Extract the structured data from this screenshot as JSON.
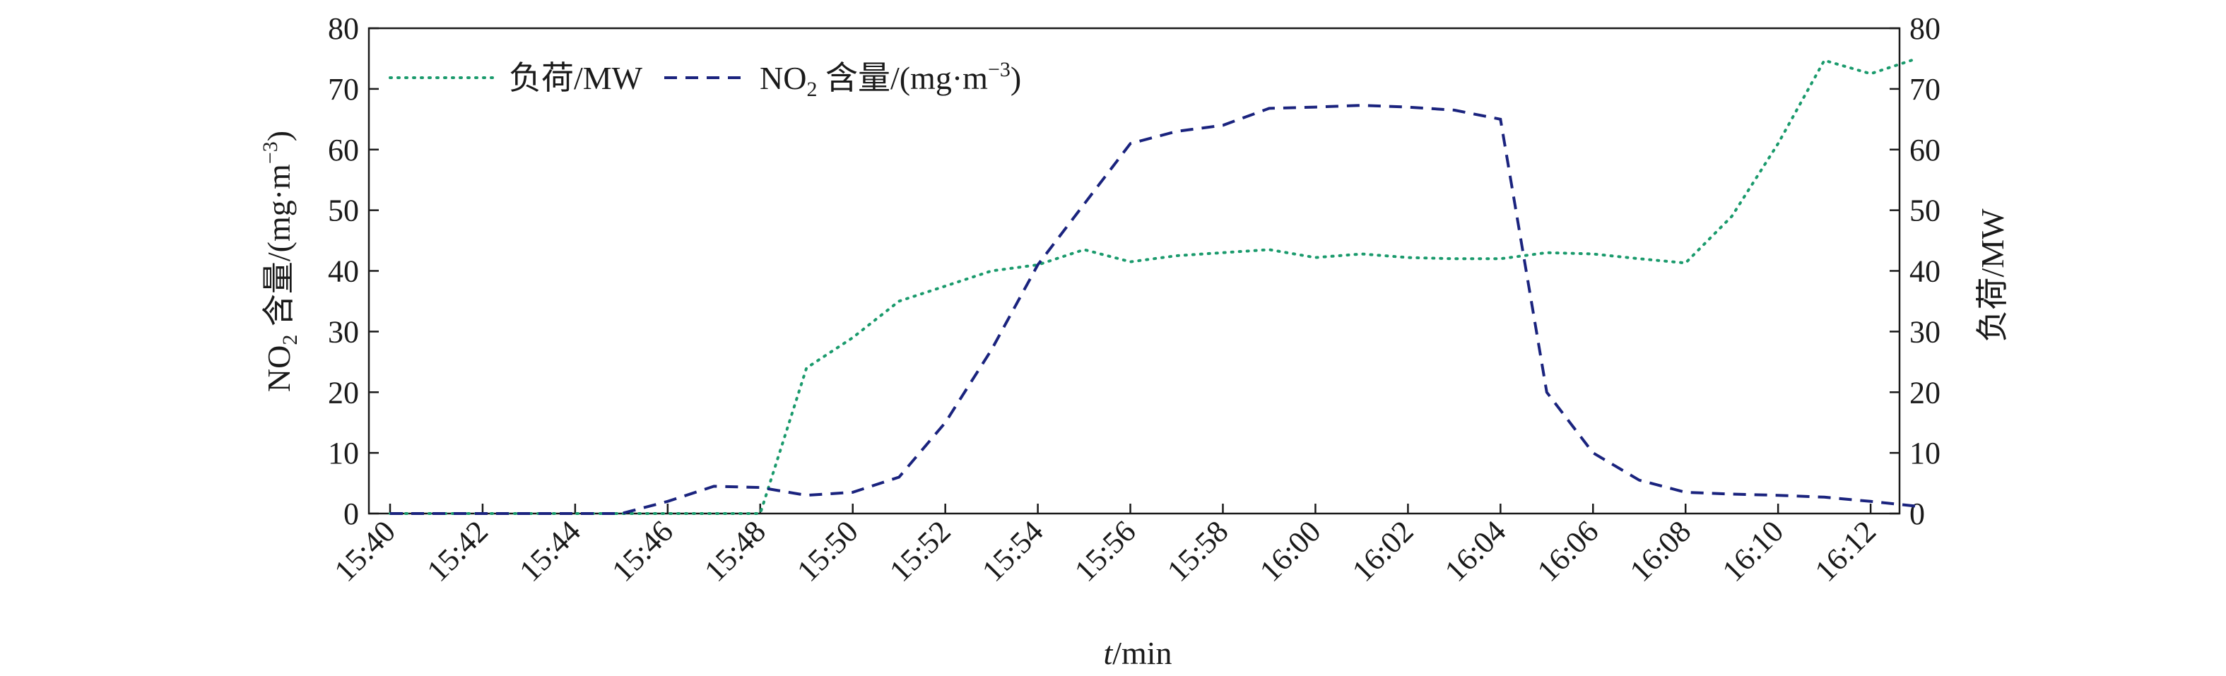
{
  "chart_data": {
    "type": "line",
    "xlabel_italic": "t",
    "xlabel_rest": "/min",
    "ylabel_left": {
      "part1": "NO",
      "sub": "2",
      "part2": " 含量/(mg·m",
      "sup": "−3",
      "part3": ")"
    },
    "ylabel_right": "负荷/MW",
    "ylim_left": [
      0,
      80
    ],
    "ylim_right": [
      0,
      80
    ],
    "yticks": [
      "0",
      "10",
      "20",
      "30",
      "40",
      "50",
      "60",
      "70",
      "80"
    ],
    "x_range_min": [
      0,
      33
    ],
    "xticks": [
      {
        "min": 0,
        "label": "15:40"
      },
      {
        "min": 2,
        "label": "15:42"
      },
      {
        "min": 4,
        "label": "15:44"
      },
      {
        "min": 6,
        "label": "15:46"
      },
      {
        "min": 8,
        "label": "15:48"
      },
      {
        "min": 10,
        "label": "15:50"
      },
      {
        "min": 12,
        "label": "15:52"
      },
      {
        "min": 14,
        "label": "15:54"
      },
      {
        "min": 16,
        "label": "15:56"
      },
      {
        "min": 18,
        "label": "15:58"
      },
      {
        "min": 20,
        "label": "16:00"
      },
      {
        "min": 22,
        "label": "16:02"
      },
      {
        "min": 24,
        "label": "16:04"
      },
      {
        "min": 26,
        "label": "16:06"
      },
      {
        "min": 28,
        "label": "16:08"
      },
      {
        "min": 30,
        "label": "16:10"
      },
      {
        "min": 32,
        "label": "16:12"
      }
    ],
    "legend_placement": "top-left",
    "series": [
      {
        "name": "负荷/MW",
        "axis": "right",
        "style": "dotted",
        "color": "#1a9a6c",
        "legend_text": "负荷/MW",
        "x": [
          "15:40",
          "15:41",
          "15:42",
          "15:43",
          "15:44",
          "15:45",
          "15:46",
          "15:47",
          "15:48",
          "15:49",
          "15:50",
          "15:51",
          "15:52",
          "15:53",
          "15:54",
          "15:55",
          "15:56",
          "15:57",
          "15:58",
          "15:59",
          "16:00",
          "16:01",
          "16:02",
          "16:03",
          "16:04",
          "16:05",
          "16:06",
          "16:07",
          "16:08",
          "16:09",
          "16:10",
          "16:11",
          "16:12",
          "16:13"
        ],
        "y": [
          0,
          0,
          0,
          0,
          0,
          0,
          0,
          0,
          0,
          24,
          29,
          35,
          37.5,
          40,
          41,
          43.5,
          41.5,
          42.5,
          43,
          43.5,
          42.2,
          42.8,
          42.2,
          42,
          42,
          43,
          42.8,
          42,
          41.3,
          49,
          61,
          74.7,
          72.5,
          75
        ]
      },
      {
        "name": "NO2 含量/(mg·m−3)",
        "axis": "left",
        "style": "dashed",
        "color": "#1a237e",
        "legend_main": "NO",
        "legend_sub": "2",
        "legend_mid": " 含量/(mg·m",
        "legend_sup": "−3",
        "legend_end": ")",
        "x": [
          "15:40",
          "15:41",
          "15:42",
          "15:43",
          "15:44",
          "15:45",
          "15:46",
          "15:47",
          "15:48",
          "15:49",
          "15:50",
          "15:51",
          "15:52",
          "15:53",
          "15:54",
          "15:55",
          "15:56",
          "15:57",
          "15:58",
          "15:59",
          "16:00",
          "16:01",
          "16:02",
          "16:03",
          "16:04",
          "16:05",
          "16:06",
          "16:07",
          "16:08",
          "16:09",
          "16:10",
          "16:11",
          "16:12",
          "16:13"
        ],
        "y": [
          0,
          0,
          0,
          0,
          0,
          0,
          2,
          4.5,
          4.3,
          3,
          3.5,
          6,
          15,
          27,
          41,
          51,
          61,
          63,
          64,
          66.8,
          67,
          67.3,
          67,
          66.5,
          65,
          20,
          10,
          5.5,
          3.5,
          3.2,
          3,
          2.7,
          2,
          1.2
        ]
      }
    ]
  }
}
